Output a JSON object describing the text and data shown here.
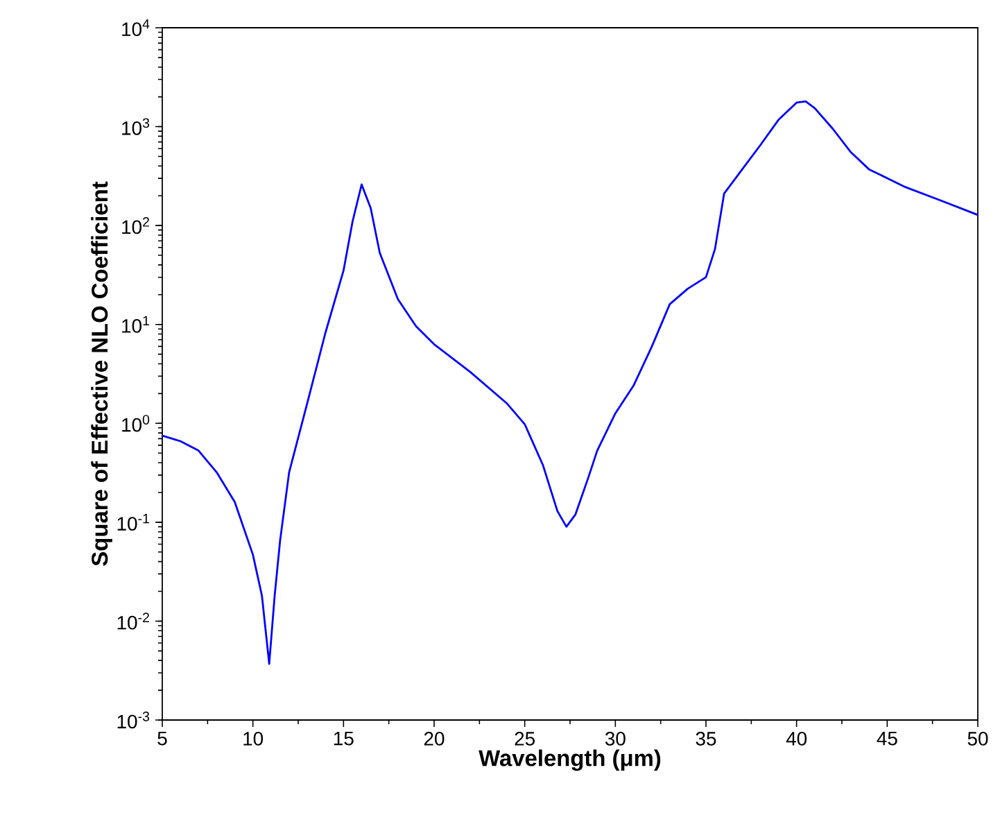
{
  "chart_data": {
    "type": "line",
    "xlabel": "Wavelength (μm)",
    "ylabel": "Square of Effective NLO Coefficient",
    "log": "y",
    "xlim": [
      5,
      50
    ],
    "ylim": [
      0.001,
      10000
    ],
    "xticks": [
      5,
      10,
      15,
      20,
      25,
      30,
      35,
      40,
      45,
      50
    ],
    "yticks": [
      {
        "value": 0.001,
        "label": "10$^{-3}$"
      },
      {
        "value": 0.01,
        "label": "10$^{-2}$"
      },
      {
        "value": 0.1,
        "label": "10$^{-1}$"
      },
      {
        "value": 1,
        "label": "10$^{0}$"
      },
      {
        "value": 10,
        "label": "10$^{1}$"
      },
      {
        "value": 100,
        "label": "10$^{2}$"
      },
      {
        "value": 1000,
        "label": "10$^{3}$"
      },
      {
        "value": 10000,
        "label": "10$^{4}$"
      }
    ],
    "series": [
      {
        "color": "#0000ff",
        "x": [
          5,
          6,
          7,
          8,
          9,
          10,
          10.5,
          10.9,
          11.2,
          11.5,
          12,
          13,
          14,
          15,
          15.5,
          16,
          16.5,
          17,
          18,
          19,
          20,
          22,
          24,
          25,
          26,
          26.8,
          27.3,
          27.8,
          28.5,
          29,
          30,
          31,
          32,
          33,
          34,
          35,
          35.5,
          36,
          37,
          38,
          39,
          40,
          40.5,
          41,
          42,
          43,
          44,
          46,
          48,
          50
        ],
        "values": [
          0.75,
          0.66,
          0.53,
          0.32,
          0.16,
          0.047,
          0.018,
          0.0037,
          0.018,
          0.065,
          0.32,
          1.6,
          8.2,
          35,
          110,
          260,
          150,
          53,
          18,
          9.6,
          6.3,
          3.3,
          1.6,
          0.98,
          0.38,
          0.13,
          0.09,
          0.12,
          0.28,
          0.53,
          1.26,
          2.4,
          5.9,
          16,
          23,
          30,
          58,
          210,
          370,
          650,
          1170,
          1750,
          1800,
          1540,
          950,
          550,
          370,
          245,
          178,
          128
        ]
      }
    ]
  }
}
